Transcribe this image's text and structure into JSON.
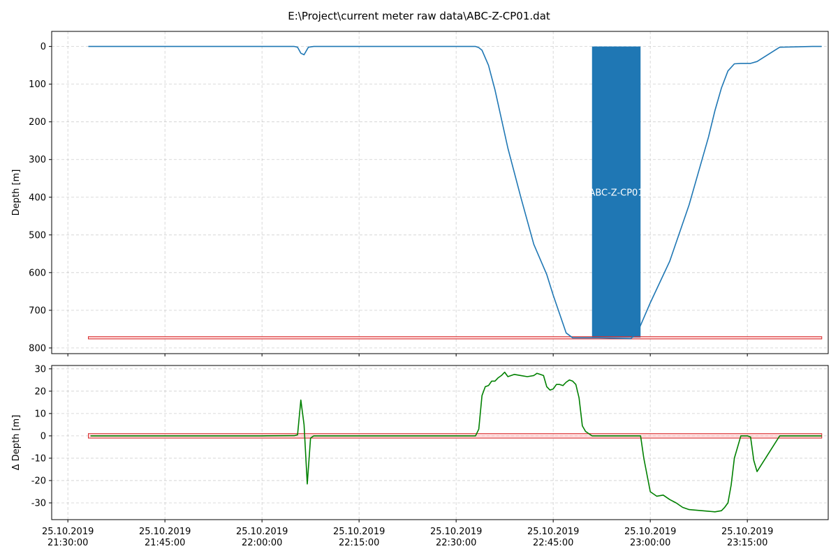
{
  "title": "E:\\Project\\current meter raw data\\ABC-Z-CP01.dat",
  "colors": {
    "depth_line": "#1f77b4",
    "window_fill": "#1f77b4",
    "delta_line": "#008000",
    "band_edge": "#d62728",
    "band_fill": "#ffb3b3",
    "grid": "#b0b0b0"
  },
  "x_axis": {
    "ticks": [
      "21:30:00",
      "21:45:00",
      "22:00:00",
      "22:15:00",
      "22:30:00",
      "22:45:00",
      "23:00:00",
      "23:15:00"
    ],
    "tick_date": "25.10.2019",
    "range": [
      "21:27:30",
      "23:27:30"
    ]
  },
  "chart_data": [
    {
      "type": "line",
      "ylabel": "Depth [m]",
      "ylim": [
        815,
        -40
      ],
      "y_inverted": true,
      "grid": true,
      "yticks": [
        0,
        100,
        200,
        300,
        400,
        500,
        600,
        700,
        800
      ],
      "series": [
        {
          "time": [
            "21:33:10",
            "21:40:00",
            "21:50:00",
            "22:00:00",
            "22:05:00",
            "22:05:30",
            "22:06:00",
            "22:06:30",
            "22:07:10",
            "22:08:00",
            "22:15:00",
            "22:25:00",
            "22:30:00",
            "22:33:00",
            "22:33:30",
            "22:34:00",
            "22:35:00",
            "22:36:00",
            "22:38:00",
            "22:40:00",
            "22:42:00",
            "22:44:00",
            "22:45:00",
            "22:47:00",
            "22:48:00",
            "22:49:00",
            "22:52:00",
            "22:57:00",
            "22:58:00",
            "23:00:00",
            "23:03:00",
            "23:06:00",
            "23:09:00",
            "23:10:00",
            "23:11:00",
            "23:12:00",
            "23:13:00",
            "23:14:00",
            "23:14:45",
            "23:15:30",
            "23:16:30",
            "23:20:00",
            "23:25:00",
            "23:26:30"
          ],
          "values": [
            0,
            0,
            0,
            0,
            0,
            2,
            18,
            22,
            2,
            0,
            0,
            0,
            0,
            0,
            3,
            10,
            50,
            115,
            270,
            400,
            525,
            605,
            660,
            760,
            773,
            773,
            773,
            775,
            760,
            680,
            570,
            420,
            240,
            170,
            110,
            65,
            46,
            45,
            45,
            45,
            40,
            2,
            0,
            0
          ]
        }
      ],
      "annotations": [
        {
          "type": "filled_window",
          "label": "ABC-Z-CP01",
          "x_start": "22:51:00",
          "x_end": "22:58:30",
          "y_start": 0,
          "y_end": 773
        },
        {
          "type": "band",
          "x_start": "21:33:10",
          "x_end": "23:26:30",
          "y_start": 770,
          "y_end": 776
        }
      ]
    },
    {
      "type": "line",
      "ylabel": "Δ Depth [m]",
      "ylim": [
        -37.5,
        31.5
      ],
      "grid": true,
      "yticks": [
        -30,
        -20,
        -10,
        0,
        10,
        20,
        30
      ],
      "series": [
        {
          "time": [
            "21:33:30",
            "22:00:00",
            "22:05:00",
            "22:05:30",
            "22:06:00",
            "22:06:30",
            "22:07:00",
            "22:07:30",
            "22:08:00",
            "22:20:00",
            "22:33:00",
            "22:33:30",
            "22:34:00",
            "22:34:30",
            "22:35:00",
            "22:35:30",
            "22:36:00",
            "22:36:30",
            "22:37:00",
            "22:37:30",
            "22:38:00",
            "22:38:30",
            "22:39:00",
            "22:40:00",
            "22:41:00",
            "22:42:00",
            "22:42:30",
            "22:43:00",
            "22:43:30",
            "22:44:00",
            "22:44:30",
            "22:45:00",
            "22:45:30",
            "22:46:00",
            "22:46:30",
            "22:47:00",
            "22:47:30",
            "22:48:00",
            "22:48:30",
            "22:49:00",
            "22:49:30",
            "22:50:00",
            "22:51:00",
            "22:55:00",
            "22:58:00",
            "22:58:30",
            "22:59:00",
            "23:00:00",
            "23:01:00",
            "23:02:00",
            "23:03:00",
            "23:04:00",
            "23:05:00",
            "23:06:00",
            "23:08:00",
            "23:10:00",
            "23:11:00",
            "23:11:30",
            "23:12:00",
            "23:12:30",
            "23:13:00",
            "23:14:00",
            "23:14:30",
            "23:15:00",
            "23:15:30",
            "23:16:00",
            "23:16:30",
            "23:20:00",
            "23:26:30"
          ],
          "values": [
            0,
            0,
            0.1,
            0.5,
            16,
            5,
            -21.5,
            -1,
            0,
            0,
            0,
            3,
            18,
            22,
            22.5,
            24.5,
            24.5,
            26,
            27,
            28.5,
            26.5,
            27,
            27.5,
            27,
            26.5,
            27,
            28,
            27.5,
            27,
            22,
            20.5,
            21,
            23,
            23,
            22.5,
            24,
            25,
            24.5,
            23,
            17,
            4.5,
            2,
            0,
            0,
            0,
            0,
            -10,
            -25,
            -27,
            -26.5,
            -28.5,
            -30,
            -32,
            -33,
            -33.5,
            -34,
            -33.5,
            -32,
            -30,
            -22,
            -10,
            0,
            0,
            0,
            -0.5,
            -11,
            -16,
            0,
            0
          ]
        }
      ],
      "annotations": [
        {
          "type": "band",
          "x_start": "21:33:10",
          "x_end": "23:26:30",
          "y_start": -1,
          "y_end": 1
        }
      ]
    }
  ]
}
